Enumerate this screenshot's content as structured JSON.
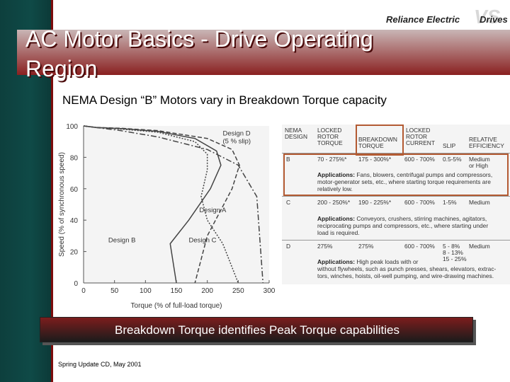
{
  "header": {
    "title_line1": "AC Motor Basics - Drive Operating",
    "title_line2": "Region",
    "logo_left": "Reliance Electric",
    "logo_mark": "VS",
    "logo_right": "Drives"
  },
  "subtitle": "NEMA Design “B” Motors vary in Breakdown Torque capacity",
  "chart_data": {
    "type": "line",
    "xlabel": "Torque (% of full-load torque)",
    "ylabel": "Speed (% of synchronous speed)",
    "xlim": [
      0,
      300
    ],
    "ylim": [
      0,
      100
    ],
    "xticks": [
      0,
      50,
      100,
      150,
      200,
      250,
      300
    ],
    "yticks": [
      0,
      20,
      40,
      60,
      80,
      100
    ],
    "grid": false,
    "series": [
      {
        "name": "Design A",
        "x": [
          0,
          20,
          60,
          120,
          200,
          240,
          252,
          240,
          220,
          200,
          180
        ],
        "y": [
          100,
          99,
          98.5,
          97,
          92,
          85,
          75,
          60,
          45,
          30,
          0
        ]
      },
      {
        "name": "Design B",
        "x": [
          0,
          20,
          60,
          120,
          180,
          215,
          222,
          205,
          170,
          140,
          150
        ],
        "y": [
          100,
          99,
          98.3,
          96.5,
          92,
          84,
          75,
          60,
          40,
          25,
          0
        ]
      },
      {
        "name": "Design C",
        "x": [
          0,
          20,
          60,
          120,
          180,
          200,
          200,
          190,
          200,
          225,
          250
        ],
        "y": [
          100,
          99,
          98,
          96,
          90,
          82,
          72,
          55,
          40,
          25,
          0
        ]
      },
      {
        "name": "Design D",
        "x": [
          0,
          20,
          60,
          120,
          200,
          250,
          280,
          290
        ],
        "y": [
          100,
          99,
          97,
          93,
          85,
          75,
          55,
          0
        ]
      }
    ],
    "annotations": [
      {
        "text": "Design D",
        "x": 225,
        "y": 94
      },
      {
        "text": "(5 % slip)",
        "x": 225,
        "y": 89
      },
      {
        "text": "Design A",
        "x": 187,
        "y": 45
      },
      {
        "text": "Design B",
        "x": 40,
        "y": 26
      },
      {
        "text": "Design C",
        "x": 170,
        "y": 26
      }
    ]
  },
  "table": {
    "headers": {
      "nema": [
        "NEMA",
        "DESIGN"
      ],
      "lrt": [
        "LOCKED",
        "ROTOR",
        "TORQUE"
      ],
      "bdt": [
        "BREAKDOWN",
        "TORQUE"
      ],
      "lrc": [
        "LOCKED",
        "ROTOR",
        "CURRENT"
      ],
      "slip": [
        "SLIP"
      ],
      "eff": [
        "RELATIVE",
        "EFFICIENCY"
      ]
    },
    "rows": [
      {
        "design": "B",
        "lrt": "70 - 275%*",
        "bdt": "175 - 300%*",
        "lrc": "600 - 700%",
        "slip": "0.5-5%",
        "eff": [
          "Medium",
          "or High"
        ],
        "app_label": "Applications:",
        "app": [
          "Fans, blowers, centrifugal pumps and compressors,",
          "motor-generator sets, etc., where starting torque requirements are",
          "relatively low."
        ]
      },
      {
        "design": "C",
        "lrt": "200 - 250%*",
        "bdt": "190 - 225%*",
        "lrc": "600 - 700%",
        "slip": "1-5%",
        "eff": [
          "Medium"
        ],
        "app_label": "Applications:",
        "app": [
          "Conveyors, crushers, stirring machines, agitators,",
          "reciprocating pumps and compressors, etc., where starting under",
          "load is required."
        ]
      },
      {
        "design": "D",
        "lrt": "275%",
        "bdt": "275%",
        "lrc": "600 - 700%",
        "slip": [
          "5 - 8%",
          "8 - 13%",
          "15 - 25%"
        ],
        "eff": [
          "Medium"
        ],
        "app_label": "Applications:",
        "app": [
          "High peak loads with or",
          "without flywheels, such as punch presses, shears, elevators, extrac-",
          "tors, winches, hoists, oil-well pumping, and wire-drawing machines."
        ]
      }
    ]
  },
  "banner": "Breakdown Torque identifies Peak Torque capabilities",
  "footer": "Spring Update CD, May 2001",
  "colors": {
    "sidebar": "#0f4a47",
    "accent": "#7d0c0c",
    "highlight": "#b35a32"
  }
}
